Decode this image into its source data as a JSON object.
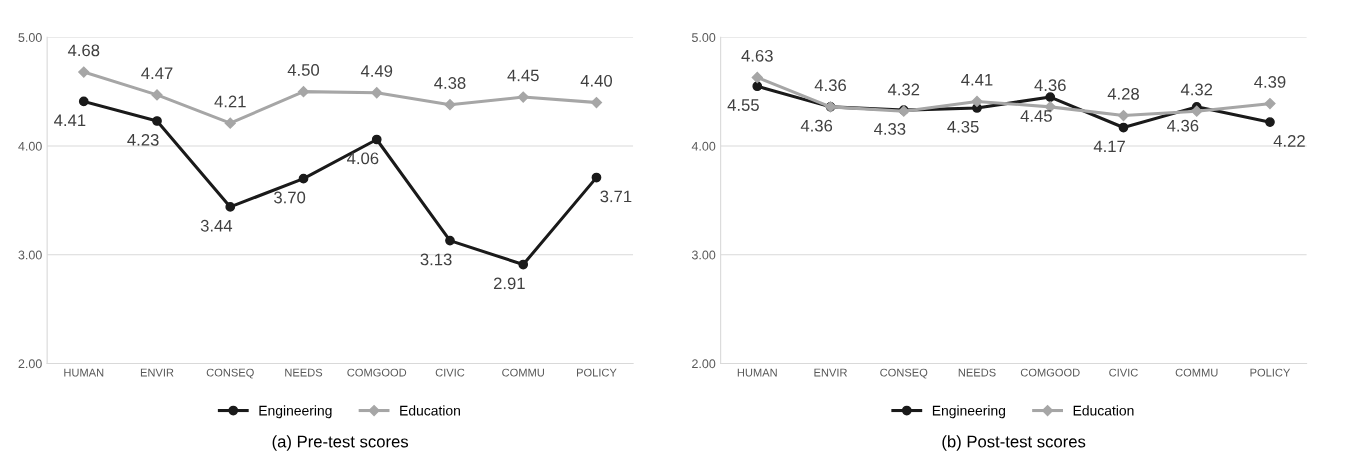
{
  "chart_data": [
    {
      "type": "line",
      "title": "(a) Pre-test scores",
      "categories": [
        "HUMAN",
        "ENVIR",
        "CONSEQ",
        "NEEDS",
        "COMGOOD",
        "CIVIC",
        "COMMU",
        "POLICY"
      ],
      "series": [
        {
          "name": "Engineering",
          "color": "#1a1a1a",
          "marker": "circle",
          "values": [
            4.41,
            4.23,
            3.44,
            3.7,
            4.06,
            3.13,
            2.91,
            3.71
          ],
          "value_labels": [
            "4.41",
            "4.23",
            "3.44",
            "3.70",
            "4.06",
            "3.13",
            "2.91",
            "3.71"
          ]
        },
        {
          "name": "Education",
          "color": "#a6a6a6",
          "marker": "diamond",
          "values": [
            4.68,
            4.47,
            4.21,
            4.5,
            4.49,
            4.38,
            4.45,
            4.4
          ],
          "value_labels": [
            "4.68",
            "4.47",
            "4.21",
            "4.50",
            "4.49",
            "4.38",
            "4.45",
            "4.40"
          ]
        }
      ],
      "ylim": [
        2,
        5
      ],
      "yticks": [
        {
          "value": 2,
          "label": "2.00"
        },
        {
          "value": 3,
          "label": "3.00"
        },
        {
          "value": 4,
          "label": "4.00"
        },
        {
          "value": 5,
          "label": "5.00"
        }
      ],
      "grid": "y",
      "legend": "bottom",
      "line_style": "solid"
    },
    {
      "type": "line",
      "title": "(b) Post-test scores",
      "categories": [
        "HUMAN",
        "ENVIR",
        "CONSEQ",
        "NEEDS",
        "COMGOOD",
        "CIVIC",
        "COMMU",
        "POLICY"
      ],
      "series": [
        {
          "name": "Engineering",
          "color": "#1a1a1a",
          "marker": "circle",
          "values": [
            4.55,
            4.36,
            4.33,
            4.35,
            4.45,
            4.17,
            4.36,
            4.22
          ],
          "value_labels": [
            "4.55",
            "4.36",
            "4.33",
            "4.35",
            "4.45",
            "4.17",
            "4.36",
            "4.22"
          ]
        },
        {
          "name": "Education",
          "color": "#a6a6a6",
          "marker": "diamond",
          "values": [
            4.63,
            4.36,
            4.32,
            4.41,
            4.36,
            4.28,
            4.32,
            4.39
          ],
          "value_labels": [
            "4.63",
            "4.36",
            "4.32",
            "4.41",
            "4.36",
            "4.28",
            "4.32",
            "4.39"
          ]
        }
      ],
      "ylim": [
        2,
        5
      ],
      "yticks": [
        {
          "value": 2,
          "label": "2.00"
        },
        {
          "value": 3,
          "label": "3.00"
        },
        {
          "value": 4,
          "label": "4.00"
        },
        {
          "value": 5,
          "label": "5.00"
        }
      ],
      "grid": "y",
      "legend": "bottom",
      "line_style": "solid"
    }
  ]
}
